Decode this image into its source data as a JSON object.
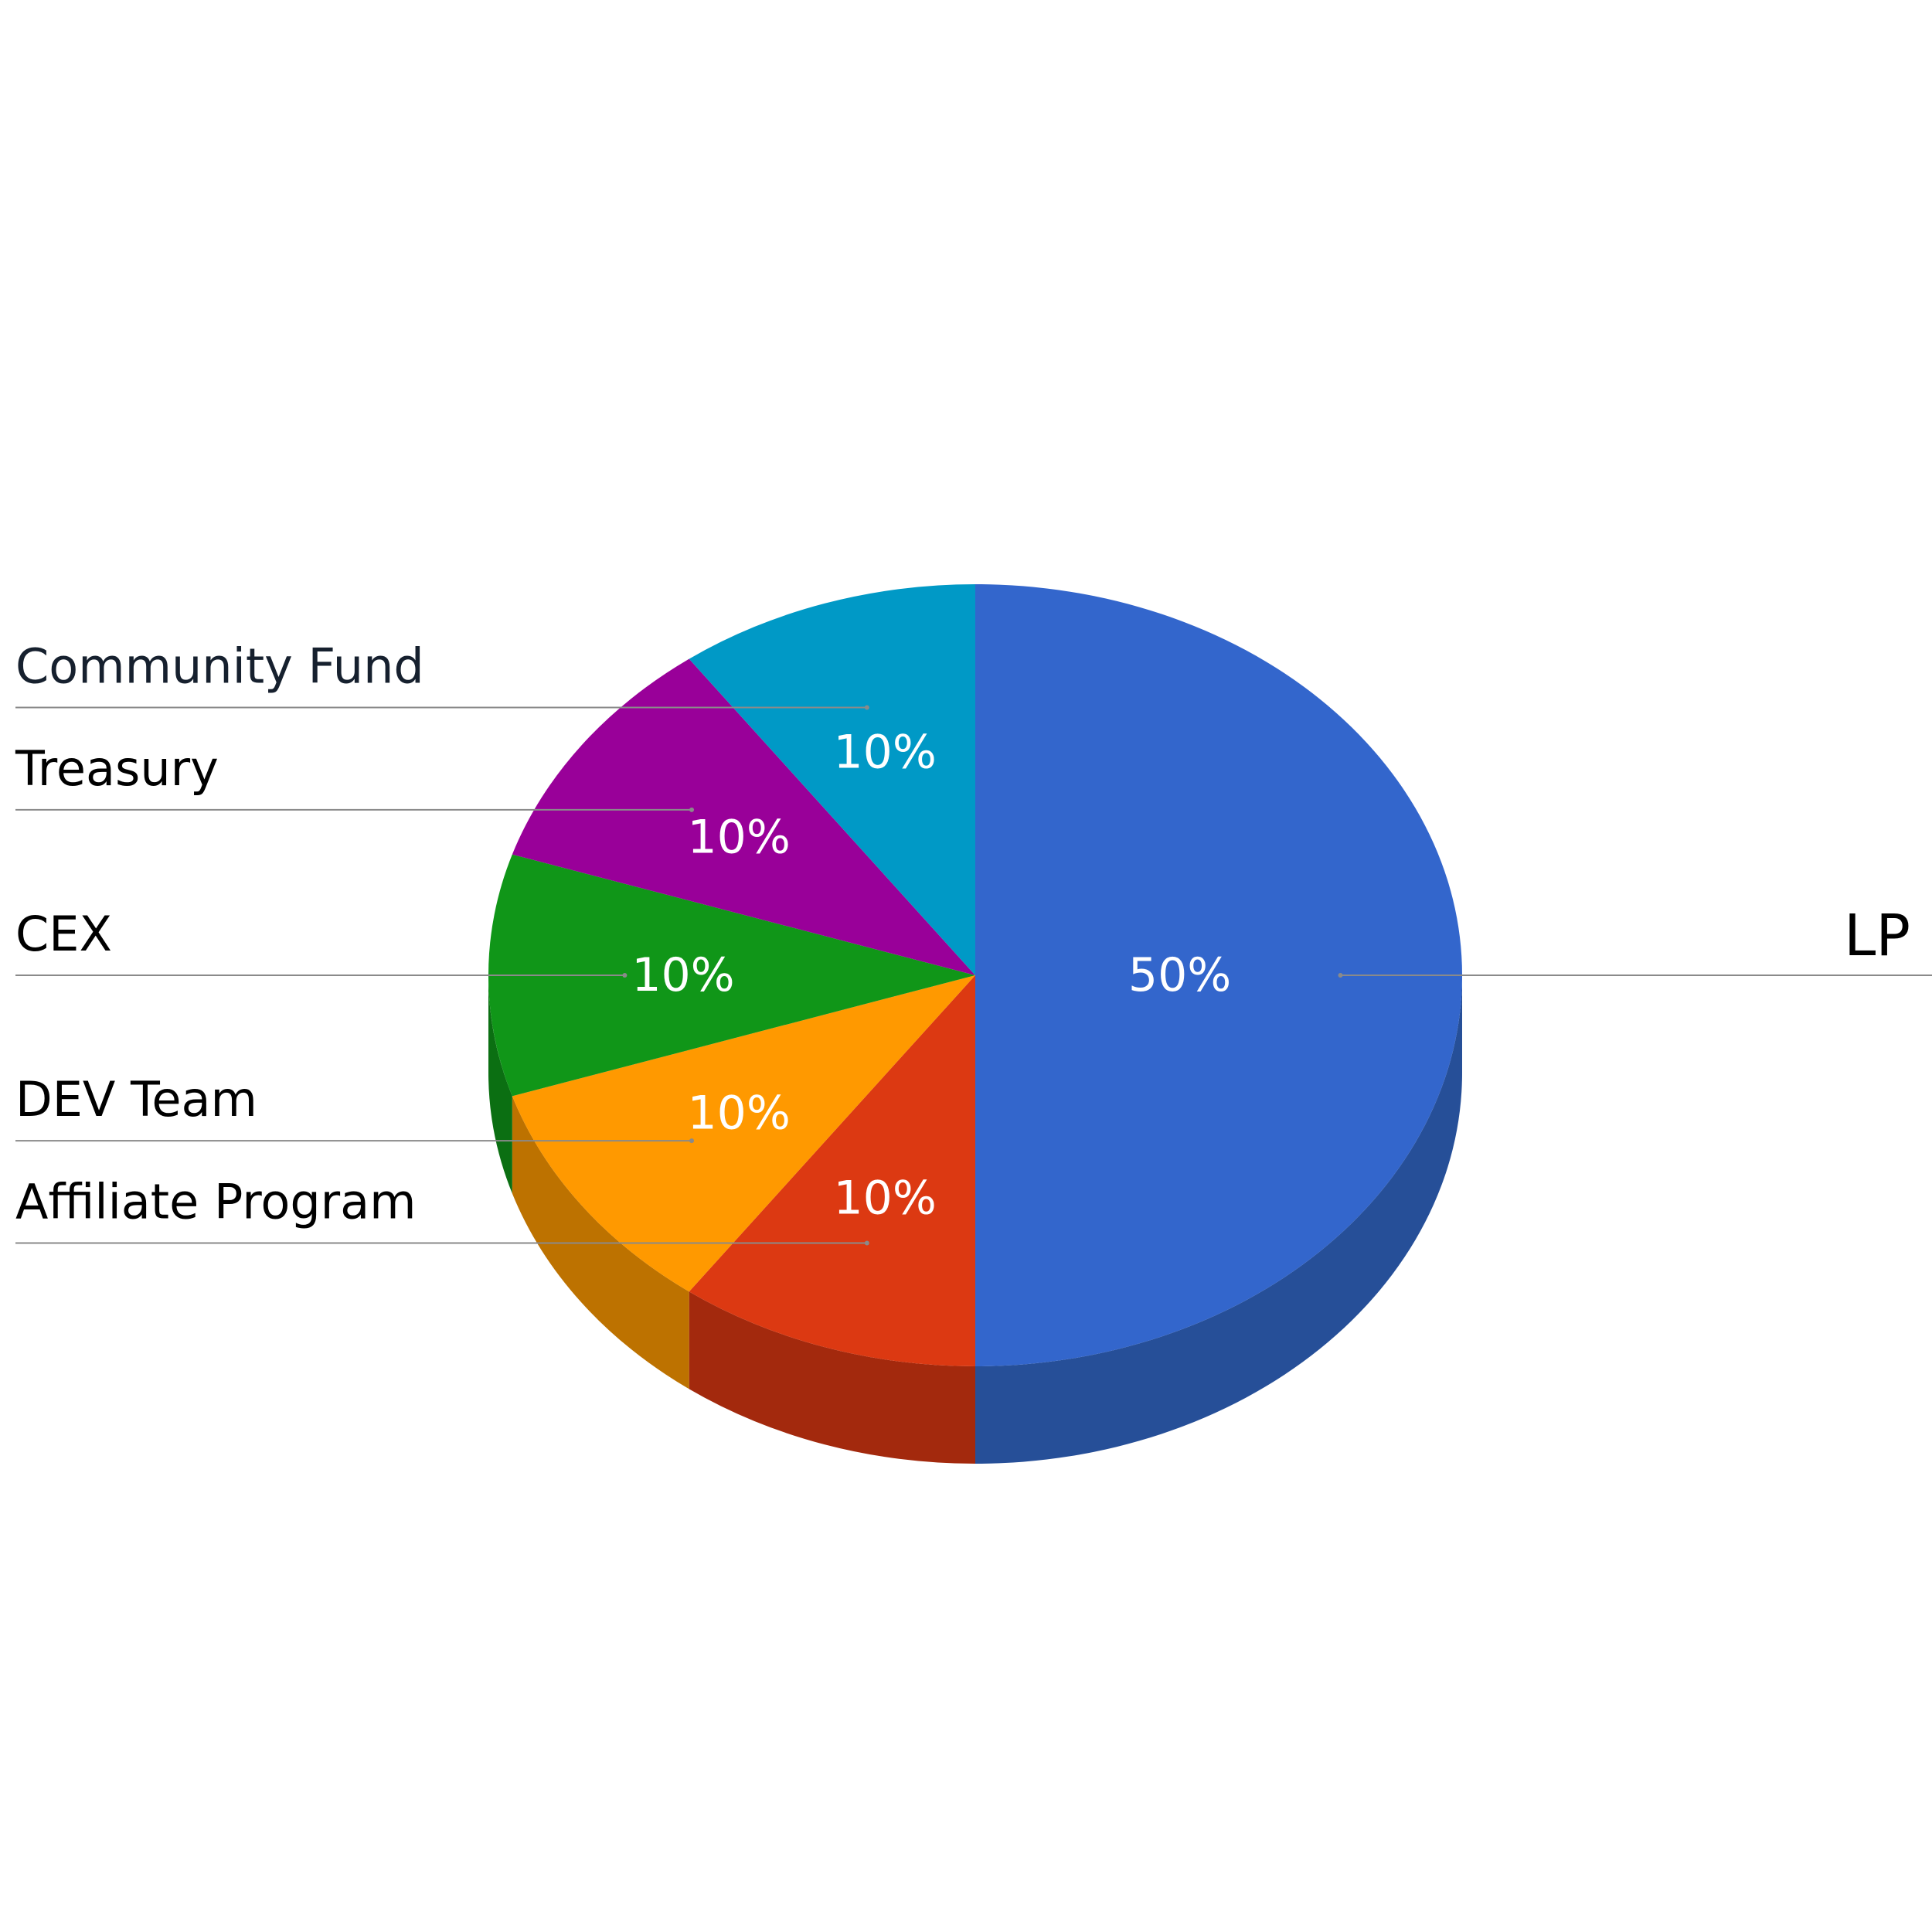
{
  "chart_data": {
    "type": "pie",
    "three_d": true,
    "title": "",
    "slices": [
      {
        "label": "LP",
        "value": 50,
        "value_label": "50%",
        "color": "#3366cc",
        "side_color": "#264f98"
      },
      {
        "label": "Affiliate Program",
        "value": 10,
        "value_label": "10%",
        "color": "#dc3912",
        "side_color": "#a3290d"
      },
      {
        "label": "DEV Team",
        "value": 10,
        "value_label": "10%",
        "color": "#ff9900",
        "side_color": "#bd7200"
      },
      {
        "label": "CEX",
        "value": 10,
        "value_label": "10%",
        "color": "#109618",
        "side_color": "#0b6f12"
      },
      {
        "label": "Treasury",
        "value": 10,
        "value_label": "10%",
        "color": "#990099",
        "side_color": "#710071"
      },
      {
        "label": "Community Fund",
        "value": 10,
        "value_label": "10%",
        "color": "#0099c6",
        "side_color": "#007293"
      }
    ],
    "legend": "labeled-with-leader-lines"
  }
}
